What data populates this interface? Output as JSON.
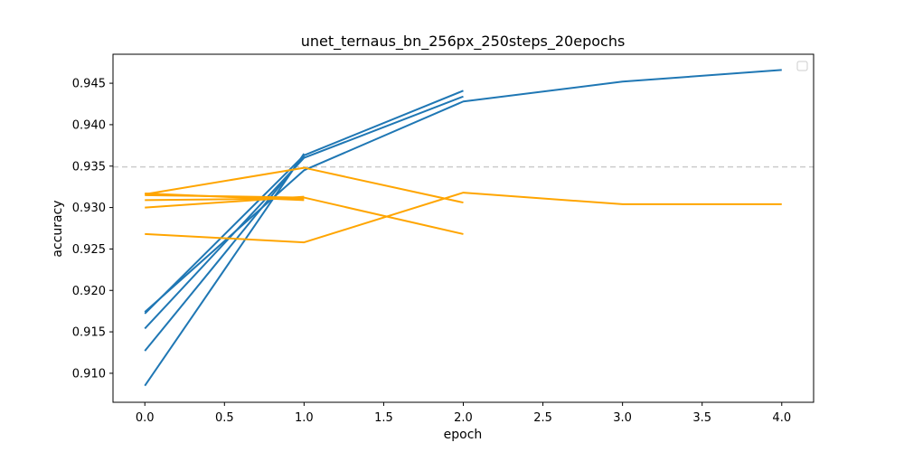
{
  "chart_data": {
    "type": "line",
    "title": "unet_ternaus_bn_256px_250steps_20epochs",
    "xlabel": "epoch",
    "ylabel": "accuracy",
    "xlim": [
      -0.2,
      4.2
    ],
    "ylim": [
      0.9065,
      0.9485
    ],
    "x_ticks": [
      "0.0",
      "0.5",
      "1.0",
      "1.5",
      "2.0",
      "2.5",
      "3.0",
      "3.5",
      "4.0"
    ],
    "y_ticks": [
      "0.910",
      "0.915",
      "0.920",
      "0.925",
      "0.930",
      "0.935",
      "0.940",
      "0.945"
    ],
    "reference_line": {
      "y": 0.9349,
      "style": "dashed",
      "color": "#cccccc"
    },
    "legend": {
      "placement": "top-right",
      "entries": []
    },
    "grid": false,
    "colors": {
      "blue": "#1f77b4",
      "orange": "#ffa500"
    },
    "series": [
      {
        "color": "blue",
        "x": [
          0,
          1
        ],
        "y": [
          0.9085,
          0.9365
        ]
      },
      {
        "color": "blue",
        "x": [
          0,
          1
        ],
        "y": [
          0.9127,
          0.9362
        ]
      },
      {
        "color": "blue",
        "x": [
          0,
          1,
          2
        ],
        "y": [
          0.9154,
          0.936,
          0.9434
        ]
      },
      {
        "color": "blue",
        "x": [
          0,
          1,
          2
        ],
        "y": [
          0.9172,
          0.9363,
          0.9441
        ]
      },
      {
        "color": "blue",
        "x": [
          0,
          1,
          2,
          3,
          4
        ],
        "y": [
          0.9174,
          0.9345,
          0.9428,
          0.9452,
          0.9466
        ]
      },
      {
        "color": "orange",
        "x": [
          0,
          1
        ],
        "y": [
          0.9317,
          0.9309
        ]
      },
      {
        "color": "orange",
        "x": [
          0,
          1
        ],
        "y": [
          0.9309,
          0.9311
        ]
      },
      {
        "color": "orange",
        "x": [
          0,
          1
        ],
        "y": [
          0.93,
          0.9313
        ]
      },
      {
        "color": "orange",
        "x": [
          0,
          1,
          2
        ],
        "y": [
          0.9316,
          0.9348,
          0.9306
        ]
      },
      {
        "color": "orange",
        "x": [
          0,
          1,
          2
        ],
        "y": [
          0.9315,
          0.9312,
          0.9268
        ]
      },
      {
        "color": "orange",
        "x": [
          0,
          1,
          2,
          3,
          4
        ],
        "y": [
          0.9268,
          0.9258,
          0.9318,
          0.9304,
          0.9304
        ]
      }
    ]
  }
}
